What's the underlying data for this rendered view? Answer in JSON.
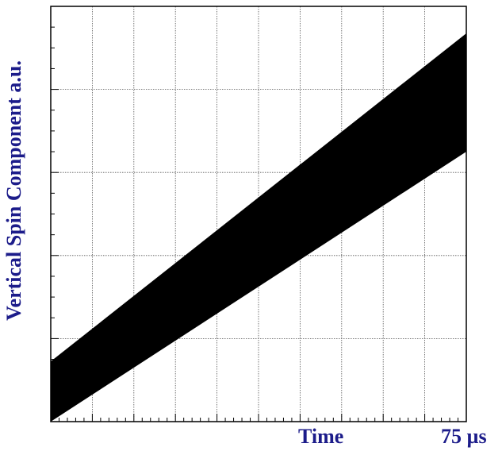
{
  "chart_data": {
    "type": "area",
    "title": "",
    "xlabel": "Time",
    "ylabel": "Vertical Spin Component a.u.",
    "x_end_label": "75 µs",
    "xlim": [
      0,
      75
    ],
    "ylim": [
      0,
      10
    ],
    "grid": true,
    "series": [
      {
        "x": [
          0,
          75
        ],
        "lower": [
          0.0,
          6.5
        ],
        "upper": [
          1.45,
          9.35
        ]
      }
    ],
    "fill_color": "#000000",
    "label_color": "#1c1c8a"
  }
}
